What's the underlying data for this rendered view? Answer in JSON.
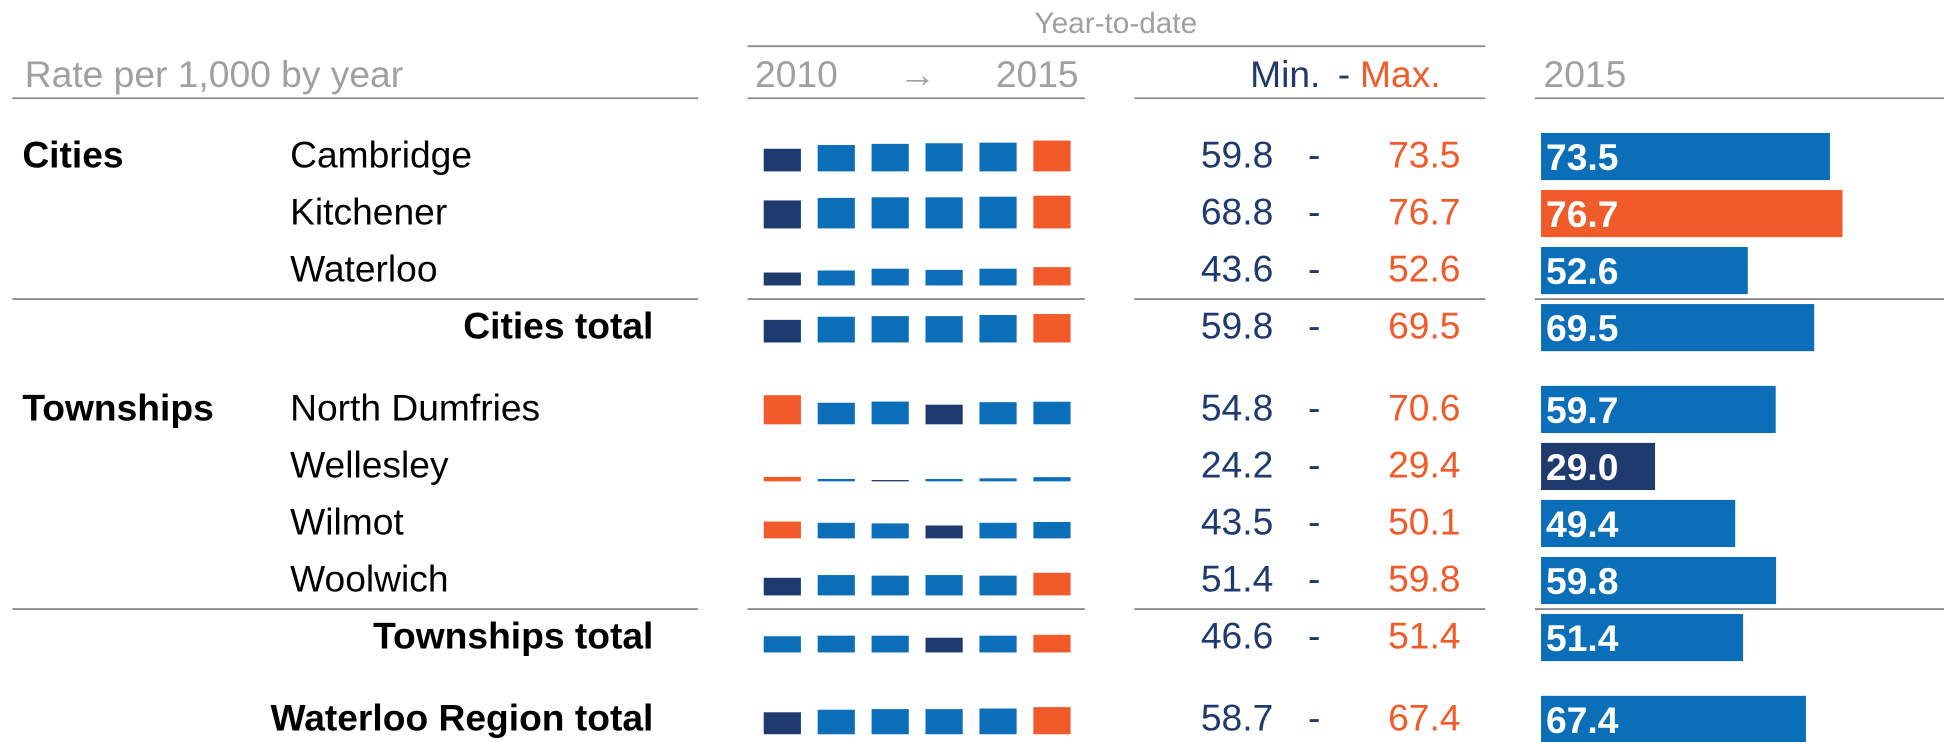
{
  "header": {
    "ytd": "Year-to-date",
    "title": "Rate per 1,000 by year",
    "from_year": "2010",
    "arrow": "→",
    "to_year": "2015",
    "min": "Min.",
    "dash": "-",
    "max": "Max.",
    "current": "2015"
  },
  "separator": "-",
  "colors": {
    "min": "#1f3a6e",
    "max": "#f15a29",
    "other": "#0a6eb8"
  },
  "spark_ylim": [
    22,
    80
  ],
  "bar_xlim": [
    0,
    100
  ],
  "groups": [
    {
      "label": "Cities",
      "rows": [
        {
          "name": "Cambridge",
          "years": [
            59.8,
            66,
            68,
            69,
            70,
            73.5
          ],
          "min": 59.8,
          "max": 73.5,
          "value": 73.5
        },
        {
          "name": "Kitchener",
          "years": [
            68.8,
            73,
            74,
            74,
            75,
            76.7
          ],
          "min": 68.8,
          "max": 76.7,
          "value": 76.7
        },
        {
          "name": "Waterloo",
          "years": [
            43.6,
            47,
            50,
            48,
            50,
            52.6
          ],
          "min": 43.6,
          "max": 52.6,
          "value": 52.6
        }
      ],
      "total": {
        "name": "Cities total",
        "years": [
          59.8,
          65,
          66,
          66,
          68,
          69.5
        ],
        "min": 59.8,
        "max": 69.5,
        "value": 69.5
      }
    },
    {
      "label": "Townships",
      "rows": [
        {
          "name": "North Dumfries",
          "years": [
            70.6,
            58,
            60,
            54.8,
            59,
            59.7
          ],
          "min": 54.8,
          "max": 70.6,
          "value": 59.7
        },
        {
          "name": "Wellesley",
          "years": [
            29.4,
            26,
            24.2,
            26,
            27,
            29
          ],
          "min": 24.2,
          "max": 29.4,
          "value": 29,
          "value_label": "29.0"
        },
        {
          "name": "Wilmot",
          "years": [
            50.1,
            48,
            47,
            43.5,
            48,
            49.4
          ],
          "min": 43.5,
          "max": 50.1,
          "value": 49.4
        },
        {
          "name": "Woolwich",
          "years": [
            51.4,
            56,
            55,
            56,
            55,
            59.8
          ],
          "min": 51.4,
          "max": 59.8,
          "value": 59.8
        }
      ],
      "total": {
        "name": "Townships total",
        "years": [
          49,
          50,
          50,
          46.6,
          50,
          51.4
        ],
        "min": 46.6,
        "max": 51.4,
        "value": 51.4
      }
    }
  ],
  "grand_total": {
    "name": "Waterloo Region total",
    "years": [
      58.7,
      63,
      64,
      64,
      65,
      67.4
    ],
    "min": 58.7,
    "max": 67.4,
    "value": 67.4
  }
}
